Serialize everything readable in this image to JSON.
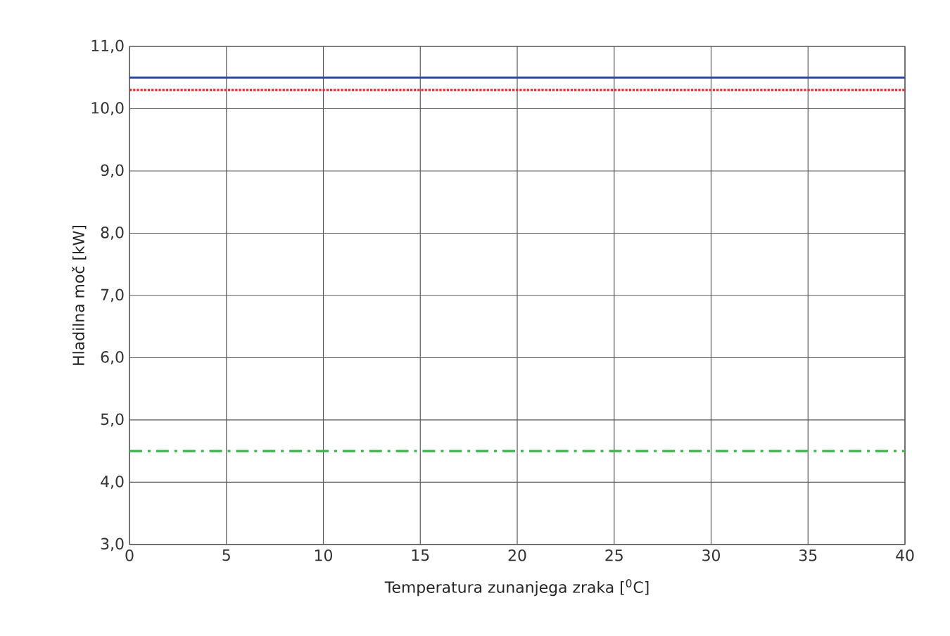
{
  "chart_data": {
    "type": "line",
    "xlabel": "Temperatura zunanjega zraka [$^{0}$C]",
    "ylabel": "Hladilna moč [kW]",
    "x": [
      0,
      40
    ],
    "series": [
      {
        "color": "#2e4a9e",
        "values": [
          10.5,
          10.5
        ],
        "line_style": "solid"
      },
      {
        "color": "#e8262b",
        "values": [
          10.3,
          10.3
        ],
        "line_style": "dotted"
      },
      {
        "color": "#3cb44b",
        "values": [
          4.5,
          4.5
        ],
        "line_style": "dashdot"
      }
    ],
    "xlim": [
      0,
      40
    ],
    "xticks": [
      0,
      5,
      10,
      15,
      20,
      25,
      30,
      35,
      40
    ],
    "ylim": [
      3,
      11
    ],
    "yticks": [
      {
        "value": 3,
        "label": "3,0"
      },
      {
        "value": 4,
        "label": "4,0"
      },
      {
        "value": 5,
        "label": "5,0"
      },
      {
        "value": 6,
        "label": "6,0"
      },
      {
        "value": 7,
        "label": "7,0"
      },
      {
        "value": 8,
        "label": "8,0"
      },
      {
        "value": 9,
        "label": "9,0"
      },
      {
        "value": 10,
        "label": "10,0"
      },
      {
        "value": 11,
        "label": "11,0"
      }
    ],
    "grid": true,
    "marker": "none"
  }
}
